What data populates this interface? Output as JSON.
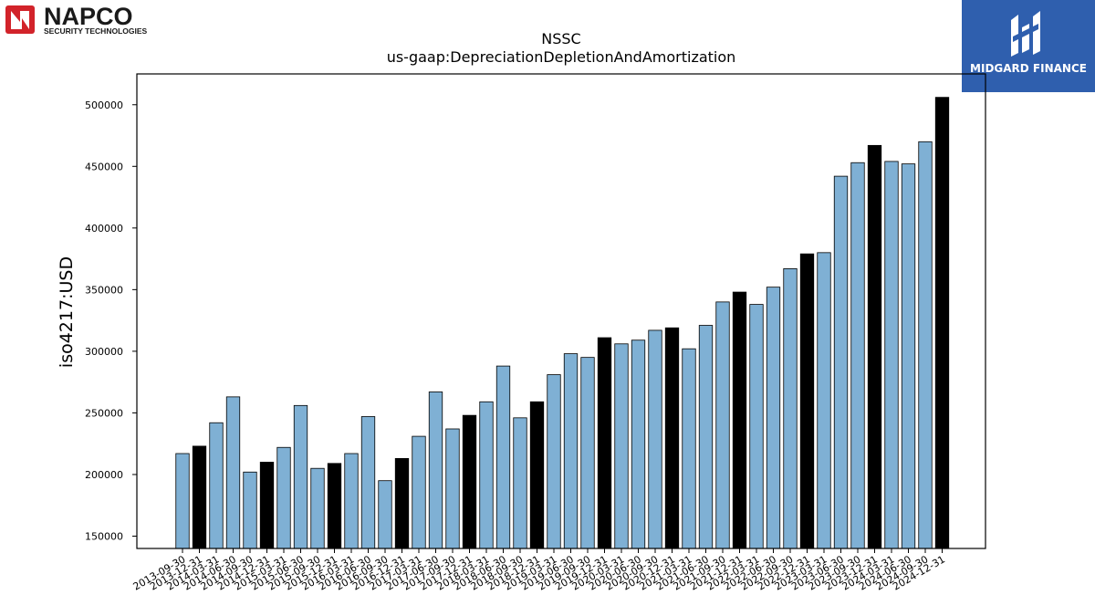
{
  "logos": {
    "napco": {
      "name": "NAPCO",
      "tagline": "SECURITY TECHNOLOGIES"
    },
    "midgard": {
      "name": "MIDGARD FINANCE"
    }
  },
  "colors": {
    "bar_default": "#7fb0d4",
    "bar_highlight": "#000000",
    "midgard_bg": "#2f5fae",
    "napco_red": "#d2232a"
  },
  "chart_data": {
    "type": "bar",
    "title": "NSSC",
    "subtitle": "us-gaap:DepreciationDepletionAndAmortization",
    "xlabel": "",
    "ylabel": "iso4217:USD",
    "ylim": [
      140000,
      525000
    ],
    "yticks": [
      150000,
      200000,
      250000,
      300000,
      350000,
      400000,
      450000,
      500000
    ],
    "grid": false,
    "categories": [
      "2013-09-30",
      "2013-12-31",
      "2014-03-31",
      "2014-06-30",
      "2014-09-30",
      "2014-12-31",
      "2015-03-31",
      "2015-06-30",
      "2015-09-30",
      "2015-12-31",
      "2016-03-31",
      "2016-06-30",
      "2016-09-30",
      "2016-12-31",
      "2017-03-31",
      "2017-06-30",
      "2017-09-30",
      "2017-12-31",
      "2018-03-31",
      "2018-06-30",
      "2018-09-30",
      "2018-12-31",
      "2019-03-31",
      "2019-06-30",
      "2019-09-30",
      "2019-12-31",
      "2020-03-31",
      "2020-06-30",
      "2020-09-30",
      "2020-12-31",
      "2021-03-31",
      "2021-06-30",
      "2021-09-30",
      "2021-12-31",
      "2022-03-31",
      "2022-06-30",
      "2022-09-30",
      "2022-12-31",
      "2023-03-31",
      "2023-06-30",
      "2023-09-30",
      "2023-12-31",
      "2024-03-31",
      "2024-06-30",
      "2024-09-30",
      "2024-12-31"
    ],
    "values": [
      217000,
      223000,
      242000,
      263000,
      202000,
      210000,
      222000,
      256000,
      205000,
      209000,
      217000,
      247000,
      195000,
      213000,
      231000,
      267000,
      237000,
      248000,
      259000,
      288000,
      246000,
      259000,
      281000,
      298000,
      295000,
      311000,
      306000,
      309000,
      317000,
      319000,
      302000,
      321000,
      340000,
      348000,
      338000,
      352000,
      367000,
      379000,
      380000,
      442000,
      453000,
      467000,
      454000,
      452000,
      470000,
      506000
    ],
    "highlight": [
      false,
      true,
      false,
      false,
      false,
      true,
      false,
      false,
      false,
      true,
      false,
      false,
      false,
      true,
      false,
      false,
      false,
      true,
      false,
      false,
      false,
      true,
      false,
      false,
      false,
      true,
      false,
      false,
      false,
      true,
      false,
      false,
      false,
      true,
      false,
      false,
      false,
      true,
      false,
      false,
      false,
      true,
      false,
      false,
      false,
      true
    ]
  }
}
